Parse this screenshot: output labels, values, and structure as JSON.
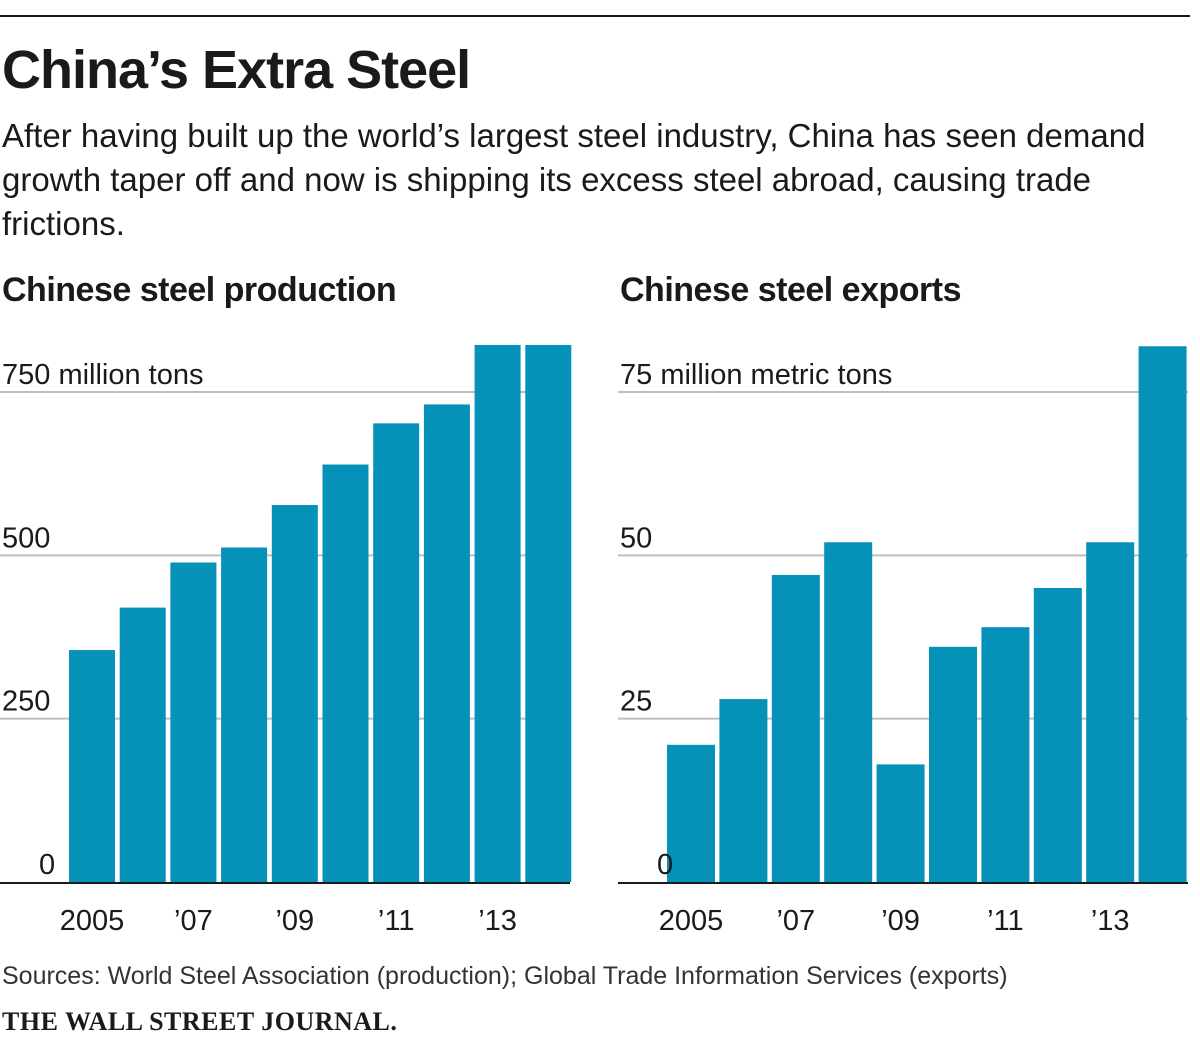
{
  "title": "China’s Extra Steel",
  "subtitle": "After having built up the world’s largest steel industry, China has seen demand growth taper off and now is shipping its excess steel abroad, causing trade frictions.",
  "source": "Sources: World Steel Association (production); Global Trade Information Services (exports)",
  "brand": "THE WALL STREET JOURNAL.",
  "colors": {
    "bar": "#0591b8",
    "grid": "#bfbfbf",
    "axis": "#1a1a1a"
  },
  "chart_data": [
    {
      "type": "bar",
      "title": "Chinese steel production",
      "unit_label": "750 million tons",
      "categories": [
        "2005",
        "2006",
        "2007",
        "2008",
        "2009",
        "2010",
        "2011",
        "2012",
        "2013",
        "2014"
      ],
      "x_tick_labels": [
        "2005",
        "’07",
        "’09",
        "’11",
        "’13"
      ],
      "y_ticks": [
        0,
        250,
        500,
        750
      ],
      "y_tick_labels": [
        "0",
        "250",
        "500",
        "750"
      ],
      "ylim": [
        0,
        820
      ],
      "values": [
        355,
        420,
        489,
        512,
        577,
        639,
        702,
        731,
        822,
        822
      ],
      "grid": true,
      "xlabel": "",
      "ylabel": ""
    },
    {
      "type": "bar",
      "title": "Chinese steel exports",
      "unit_label": "75 million metric tons",
      "categories": [
        "2005",
        "2006",
        "2007",
        "2008",
        "2009",
        "2010",
        "2011",
        "2012",
        "2013",
        "2014"
      ],
      "x_tick_labels": [
        "2005",
        "’07",
        "’09",
        "’11",
        "’13"
      ],
      "y_ticks": [
        0,
        25,
        50,
        75
      ],
      "y_tick_labels": [
        "0",
        "25",
        "50",
        "75"
      ],
      "ylim": [
        0,
        82
      ],
      "values": [
        21,
        28,
        47,
        52,
        18,
        36,
        39,
        45,
        52,
        82
      ],
      "grid": true,
      "xlabel": "",
      "ylabel": ""
    }
  ]
}
